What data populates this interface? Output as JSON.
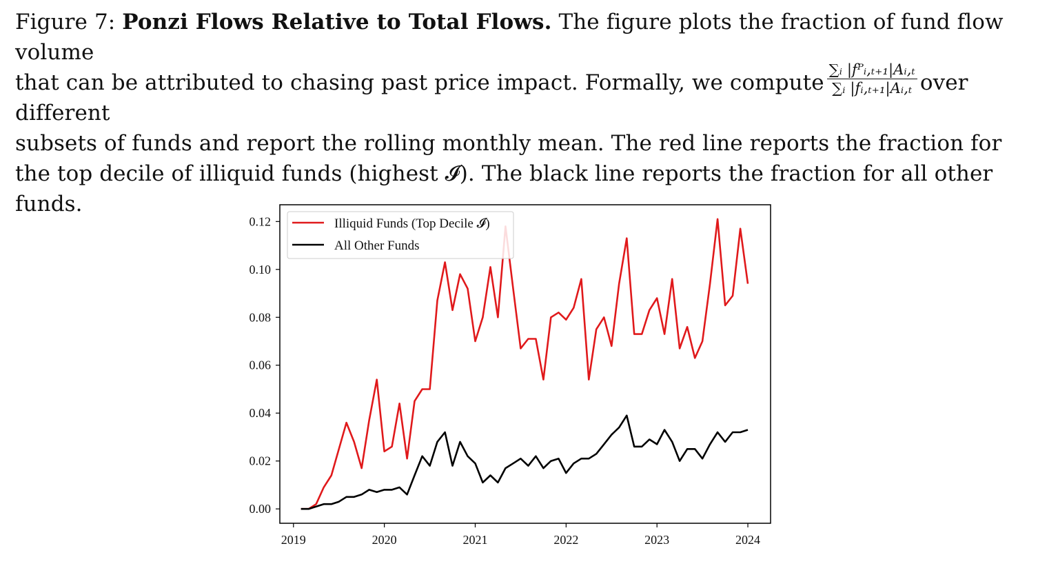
{
  "caption": {
    "label": "Figure 7:",
    "title": "Ponzi Flows Relative to Total Flows.",
    "sentence1": "The figure plots the fraction of fund flow volume",
    "line2_before": "that can be attributed to chasing past price impact. Formally, we compute",
    "formula_numerator": "∑ᵢ |fᴾᵢ,ₜ₊₁|Aᵢ,ₜ",
    "formula_denominator": "∑ᵢ |fᵢ,ₜ₊₁|Aᵢ,ₜ",
    "line2_after": "over different",
    "rest": "subsets of funds and report the rolling monthly mean. The red line reports the fraction for the top decile of illiquid funds (highest 𝓘). The black line reports the fraction for all other funds."
  },
  "chart_data": {
    "type": "line",
    "title": "",
    "xlabel": "",
    "ylabel": "",
    "xlim": [
      2018.85,
      2024.25
    ],
    "ylim": [
      -0.006,
      0.127
    ],
    "xticks": [
      2019,
      2020,
      2021,
      2022,
      2023,
      2024
    ],
    "yticks": [
      0.0,
      0.02,
      0.04,
      0.06,
      0.08,
      0.1,
      0.12
    ],
    "legend": {
      "position": "top-left"
    },
    "x": [
      2019.083,
      2019.167,
      2019.25,
      2019.333,
      2019.417,
      2019.5,
      2019.583,
      2019.667,
      2019.75,
      2019.833,
      2019.917,
      2020.0,
      2020.083,
      2020.167,
      2020.25,
      2020.333,
      2020.417,
      2020.5,
      2020.583,
      2020.667,
      2020.75,
      2020.833,
      2020.917,
      2021.0,
      2021.083,
      2021.167,
      2021.25,
      2021.333,
      2021.417,
      2021.5,
      2021.583,
      2021.667,
      2021.75,
      2021.833,
      2021.917,
      2022.0,
      2022.083,
      2022.167,
      2022.25,
      2022.333,
      2022.417,
      2022.5,
      2022.583,
      2022.667,
      2022.75,
      2022.833,
      2022.917,
      2023.0,
      2023.083,
      2023.167,
      2023.25,
      2023.333,
      2023.417,
      2023.5,
      2023.583,
      2023.667,
      2023.75,
      2023.833,
      2023.917,
      2024.0
    ],
    "series": [
      {
        "name": "Illiquid Funds (Top Decile 𝓘)",
        "color": "#e0191b",
        "values": [
          0.0,
          0.0,
          0.002,
          0.009,
          0.014,
          0.025,
          0.036,
          0.028,
          0.017,
          0.037,
          0.054,
          0.024,
          0.026,
          0.044,
          0.021,
          0.045,
          0.05,
          0.05,
          0.087,
          0.103,
          0.083,
          0.098,
          0.092,
          0.07,
          0.08,
          0.101,
          0.08,
          0.118,
          0.092,
          0.067,
          0.071,
          0.071,
          0.054,
          0.08,
          0.082,
          0.079,
          0.084,
          0.096,
          0.054,
          0.075,
          0.08,
          0.068,
          0.094,
          0.113,
          0.073,
          0.073,
          0.083,
          0.088,
          0.073,
          0.096,
          0.067,
          0.076,
          0.063,
          0.07,
          0.094,
          0.121,
          0.085,
          0.089,
          0.117,
          0.094
        ]
      },
      {
        "name": "All Other Funds",
        "color": "#000000",
        "values": [
          0.0,
          0.0,
          0.001,
          0.002,
          0.002,
          0.003,
          0.005,
          0.005,
          0.006,
          0.008,
          0.007,
          0.008,
          0.008,
          0.009,
          0.006,
          0.014,
          0.022,
          0.018,
          0.028,
          0.032,
          0.018,
          0.028,
          0.022,
          0.019,
          0.011,
          0.014,
          0.011,
          0.017,
          0.019,
          0.021,
          0.018,
          0.022,
          0.017,
          0.02,
          0.021,
          0.015,
          0.019,
          0.021,
          0.021,
          0.023,
          0.027,
          0.031,
          0.034,
          0.039,
          0.026,
          0.026,
          0.029,
          0.027,
          0.033,
          0.028,
          0.02,
          0.025,
          0.025,
          0.021,
          0.027,
          0.032,
          0.028,
          0.032,
          0.032,
          0.033
        ]
      }
    ]
  }
}
